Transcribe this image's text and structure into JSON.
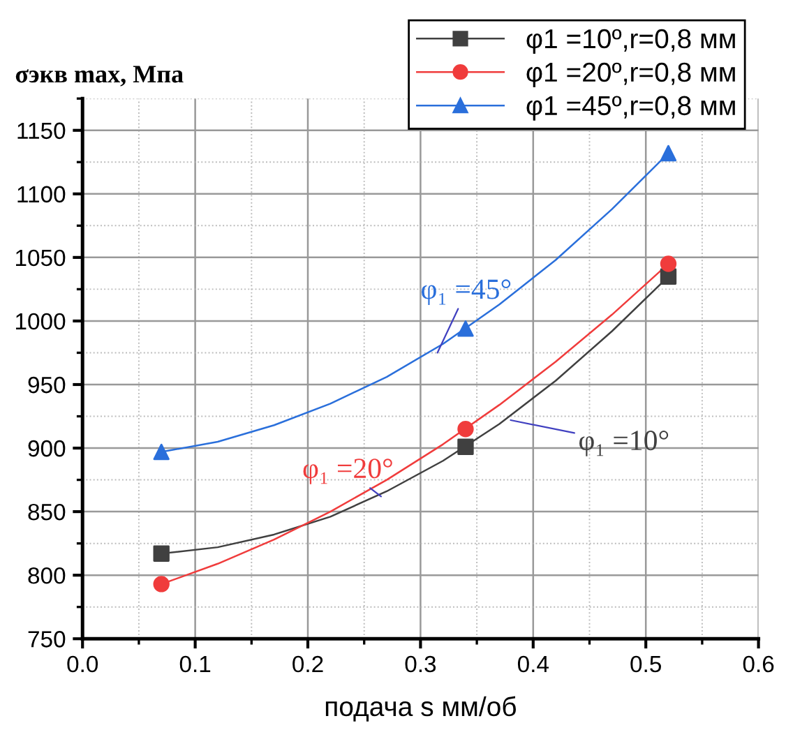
{
  "chart_data": {
    "type": "line",
    "ylabel": "σэкв max, Мпа",
    "xlabel": "подача s мм/об",
    "x": [
      0.07,
      0.34,
      0.52
    ],
    "series": [
      {
        "name": "φ1 =10º,r=0,8 мм",
        "type": "scatter",
        "color": "#404040",
        "marker": "square",
        "values": [
          817,
          901,
          1035
        ]
      },
      {
        "name": "φ1 =20º,r=0,8 мм",
        "type": "scatter",
        "color": "#f03c3c",
        "marker": "circle",
        "values": [
          793,
          915,
          1045
        ]
      },
      {
        "name": "φ1 =45º,r=0,8 мм",
        "type": "scatter",
        "color": "#2a6fdb",
        "marker": "triangle",
        "values": [
          897,
          994,
          1132
        ]
      },
      {
        "color": "#404040",
        "x": [
          0.07,
          0.12,
          0.17,
          0.22,
          0.27,
          0.32,
          0.37,
          0.42,
          0.47,
          0.52
        ],
        "values": [
          817,
          822,
          832,
          846,
          866,
          890,
          919,
          953,
          992,
          1035
        ]
      },
      {
        "color": "#f03c3c",
        "x": [
          0.07,
          0.12,
          0.17,
          0.22,
          0.27,
          0.32,
          0.37,
          0.42,
          0.47,
          0.52
        ],
        "values": [
          793,
          809,
          828,
          850,
          875,
          903,
          934,
          968,
          1005,
          1045
        ]
      },
      {
        "color": "#2a6fdb",
        "x": [
          0.07,
          0.12,
          0.17,
          0.22,
          0.27,
          0.32,
          0.37,
          0.42,
          0.47,
          0.52
        ],
        "values": [
          897,
          905,
          918,
          935,
          956,
          982,
          1013,
          1048,
          1088,
          1132
        ]
      }
    ],
    "annotations": [
      {
        "text": "φ₁ =10°",
        "x": 0.38,
        "y": 922
      },
      {
        "text": "φ₁ =20°",
        "x": 0.265,
        "y": 862
      },
      {
        "text": "φ₁ =45°",
        "x": 0.315,
        "y": 975
      }
    ],
    "xlim": [
      0.0,
      0.6
    ],
    "xticks": [
      {
        "value": 0.0,
        "label": "0.0"
      },
      {
        "value": 0.1,
        "label": "0.1"
      },
      {
        "value": 0.2,
        "label": "0.2"
      },
      {
        "value": 0.3,
        "label": "0.3"
      },
      {
        "value": 0.4,
        "label": "0.4"
      },
      {
        "value": 0.5,
        "label": "0.5"
      },
      {
        "value": 0.6,
        "label": "0.6"
      }
    ],
    "ylim": [
      750,
      1175
    ],
    "yticks": [
      750,
      800,
      850,
      900,
      950,
      1000,
      1050,
      1100,
      1150
    ],
    "grid": true,
    "legend": "top right"
  }
}
